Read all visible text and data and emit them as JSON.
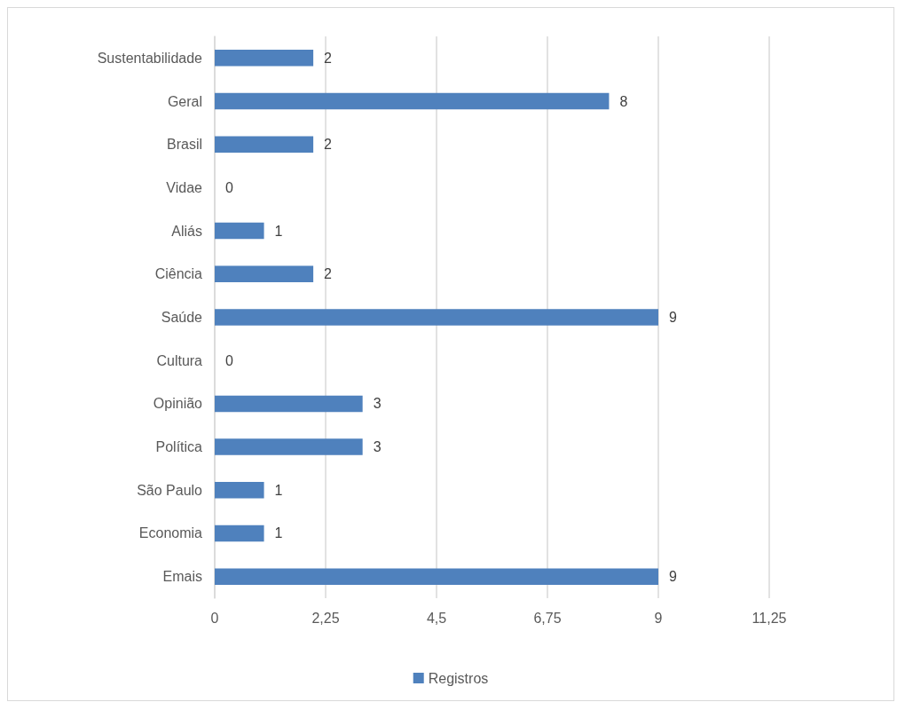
{
  "chart_data": {
    "type": "bar",
    "orientation": "horizontal",
    "categories": [
      "Sustentabilidade",
      "Geral",
      "Brasil",
      "Vidae",
      "Aliás",
      "Ciência",
      "Saúde",
      "Cultura",
      "Opinião",
      "Política",
      "São Paulo",
      "Economia",
      "Emais"
    ],
    "series": [
      {
        "name": "Registros",
        "color": "#4f81bd",
        "values": [
          2,
          8,
          2,
          0,
          1,
          2,
          9,
          0,
          3,
          3,
          1,
          1,
          9
        ]
      }
    ],
    "xlim": [
      0,
      11.25
    ],
    "xticks": [
      0,
      {
        "value": 2.25,
        "label": "2,25"
      },
      {
        "value": 4.5,
        "label": "4,5"
      },
      {
        "value": 6.75,
        "label": "6,75"
      },
      9,
      {
        "value": 11.25,
        "label": "11,25"
      }
    ],
    "grid": "x",
    "legend": "bottom",
    "data_labels": true
  }
}
